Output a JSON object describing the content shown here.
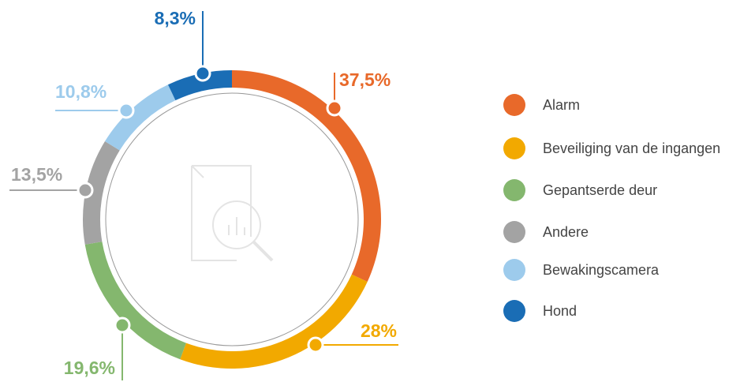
{
  "chart_data": {
    "type": "donut",
    "categories": [
      "Alarm",
      "Beveiliging van de ingangen",
      "Gepantserde deur",
      "Andere",
      "Bewakingscamera",
      "Hond"
    ],
    "values": [
      37.5,
      28,
      19.6,
      13.5,
      10.8,
      8.3
    ],
    "value_labels": [
      "37,5%",
      "28%",
      "19,6%",
      "13,5%",
      "10,8%",
      "8,3%"
    ],
    "colors": [
      "#e8692a",
      "#f2a900",
      "#84b76e",
      "#a3a3a3",
      "#9dcbec",
      "#1a6db5"
    ]
  }
}
